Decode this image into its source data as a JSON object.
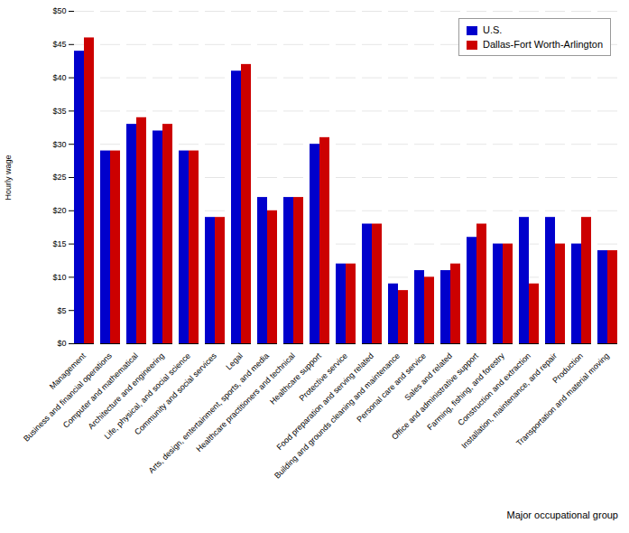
{
  "chart_data": {
    "type": "bar",
    "categories": [
      "Management",
      "Business and financial operations",
      "Computer and mathematical",
      "Architecture and engineering",
      "Life, physical, and social science",
      "Community and social services",
      "Legal",
      "Arts, design, entertainment, sports, and media",
      "Healthcare practitioners and technical",
      "Healthcare support",
      "Protective service",
      "Food preparation and serving related",
      "Building and grounds cleaning and maintenance",
      "Personal care and service",
      "Sales and related",
      "Office and administrative support",
      "Farming, fishing, and forestry",
      "Construction and extraction",
      "Installation, maintenance, and repair",
      "Production",
      "Transportation and material moving"
    ],
    "series": [
      {
        "name": "U.S.",
        "color": "#0000cc",
        "values": [
          44,
          29,
          33,
          32,
          29,
          19,
          41,
          22,
          22,
          30,
          12,
          18,
          9,
          11,
          11,
          16,
          15,
          19,
          19,
          15,
          14
        ]
      },
      {
        "name": "Dallas-Fort Worth-Arlington",
        "color": "#cc0000",
        "values": [
          46,
          29,
          34,
          33,
          29,
          19,
          42,
          20,
          22,
          31,
          12,
          18,
          8,
          10,
          12,
          18,
          15,
          9,
          15,
          19,
          14
        ]
      }
    ],
    "xlabel": "Major occupational group",
    "ylabel": "Hourly wage",
    "ylim": [
      0,
      50
    ],
    "yticks": [
      {
        "value": 0,
        "label": "$0"
      },
      {
        "value": 5,
        "label": "$5"
      },
      {
        "value": 10,
        "label": "$10"
      },
      {
        "value": 15,
        "label": "$15"
      },
      {
        "value": 20,
        "label": "$20"
      },
      {
        "value": 25,
        "label": "$25"
      },
      {
        "value": 30,
        "label": "$30"
      },
      {
        "value": 35,
        "label": "$35"
      },
      {
        "value": 40,
        "label": "$40"
      },
      {
        "value": 45,
        "label": "$45"
      },
      {
        "value": 50,
        "label": "$50"
      }
    ],
    "grid": true,
    "legend": "upper right"
  }
}
